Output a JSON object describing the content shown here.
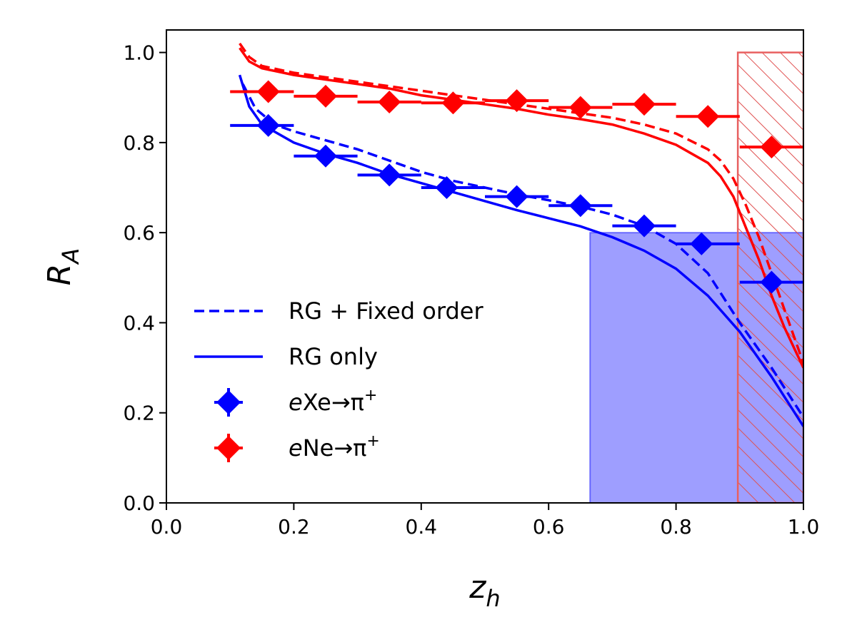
{
  "chart_data": {
    "type": "line",
    "xlabel_main": "z",
    "xlabel_sub": "h",
    "ylabel_main": "R",
    "ylabel_sub": "A",
    "xlim": [
      0.0,
      1.0
    ],
    "ylim": [
      0.0,
      1.05
    ],
    "xticks": [
      "0.0",
      "0.2",
      "0.4",
      "0.6",
      "0.8",
      "1.0"
    ],
    "yticks": [
      "0.0",
      "0.2",
      "0.4",
      "0.6",
      "0.8",
      "1.0"
    ],
    "grid": false,
    "legend_position": "lower-left",
    "shaded_regions": [
      {
        "x": [
          0.665,
          1.0
        ],
        "y": [
          0.0,
          0.6
        ],
        "color": "#0000ff",
        "style": "filled"
      },
      {
        "x": [
          0.897,
          1.0
        ],
        "y": [
          0.0,
          1.0
        ],
        "color": "#ff0000",
        "style": "hatched"
      }
    ],
    "series": [
      {
        "name": "RG + Fixed order",
        "kind": "line",
        "style": "dashed",
        "color": "#0000ff",
        "x": [
          0.12,
          0.14,
          0.17,
          0.2,
          0.25,
          0.3,
          0.35,
          0.4,
          0.45,
          0.5,
          0.55,
          0.6,
          0.65,
          0.7,
          0.75,
          0.8,
          0.85,
          0.9,
          0.95,
          1.0
        ],
        "y": [
          0.93,
          0.875,
          0.84,
          0.825,
          0.805,
          0.785,
          0.76,
          0.735,
          0.715,
          0.7,
          0.685,
          0.672,
          0.658,
          0.64,
          0.615,
          0.575,
          0.51,
          0.4,
          0.3,
          0.19
        ]
      },
      {
        "name": "RG only",
        "kind": "line",
        "style": "solid",
        "color": "#0000ff",
        "x": [
          0.115,
          0.13,
          0.15,
          0.2,
          0.25,
          0.3,
          0.35,
          0.4,
          0.45,
          0.5,
          0.55,
          0.6,
          0.65,
          0.7,
          0.75,
          0.8,
          0.85,
          0.9,
          0.95,
          1.0
        ],
        "y": [
          0.95,
          0.88,
          0.84,
          0.8,
          0.775,
          0.755,
          0.73,
          0.71,
          0.69,
          0.67,
          0.65,
          0.632,
          0.614,
          0.59,
          0.56,
          0.52,
          0.46,
          0.38,
          0.28,
          0.17
        ]
      },
      {
        "name": "",
        "kind": "line",
        "style": "dashed",
        "color": "#ff0000",
        "x": [
          0.115,
          0.13,
          0.15,
          0.2,
          0.25,
          0.3,
          0.35,
          0.4,
          0.45,
          0.5,
          0.55,
          0.6,
          0.65,
          0.7,
          0.75,
          0.8,
          0.85,
          0.87,
          0.89,
          0.91,
          0.93,
          0.95,
          0.97,
          1.0
        ],
        "y": [
          1.02,
          0.99,
          0.97,
          0.955,
          0.945,
          0.935,
          0.925,
          0.915,
          0.905,
          0.895,
          0.885,
          0.875,
          0.865,
          0.855,
          0.84,
          0.82,
          0.785,
          0.76,
          0.72,
          0.66,
          0.59,
          0.51,
          0.43,
          0.31
        ]
      },
      {
        "name": "",
        "kind": "line",
        "style": "solid",
        "color": "#ff0000",
        "x": [
          0.115,
          0.13,
          0.15,
          0.2,
          0.25,
          0.3,
          0.35,
          0.4,
          0.45,
          0.5,
          0.55,
          0.6,
          0.65,
          0.7,
          0.75,
          0.8,
          0.85,
          0.87,
          0.89,
          0.91,
          0.93,
          0.95,
          0.97,
          1.0
        ],
        "y": [
          1.01,
          0.98,
          0.965,
          0.95,
          0.94,
          0.93,
          0.92,
          0.905,
          0.895,
          0.885,
          0.875,
          0.862,
          0.852,
          0.84,
          0.82,
          0.795,
          0.755,
          0.725,
          0.68,
          0.61,
          0.54,
          0.46,
          0.39,
          0.3
        ]
      },
      {
        "name": "eXe→π⁺",
        "kind": "markers",
        "marker": "diamond",
        "color": "#0000ff",
        "x": [
          0.16,
          0.25,
          0.35,
          0.44,
          0.55,
          0.65,
          0.75,
          0.84,
          0.95
        ],
        "y": [
          0.838,
          0.77,
          0.728,
          0.7,
          0.68,
          0.66,
          0.615,
          0.575,
          0.49
        ],
        "xerr_low": [
          0.1,
          0.2,
          0.3,
          0.4,
          0.5,
          0.6,
          0.7,
          0.8,
          0.9
        ],
        "xerr_high": [
          0.2,
          0.3,
          0.4,
          0.5,
          0.6,
          0.7,
          0.8,
          0.9,
          1.0
        ]
      },
      {
        "name": "eNe→π⁺",
        "kind": "markers",
        "marker": "diamond",
        "color": "#ff0000",
        "x": [
          0.16,
          0.25,
          0.35,
          0.45,
          0.55,
          0.65,
          0.75,
          0.85,
          0.95
        ],
        "y": [
          0.913,
          0.903,
          0.89,
          0.888,
          0.893,
          0.878,
          0.885,
          0.858,
          0.79
        ],
        "xerr_low": [
          0.1,
          0.2,
          0.3,
          0.4,
          0.5,
          0.6,
          0.7,
          0.8,
          0.9
        ],
        "xerr_high": [
          0.2,
          0.3,
          0.4,
          0.5,
          0.6,
          0.7,
          0.8,
          0.9,
          1.0
        ]
      }
    ],
    "legend": [
      {
        "label": "RG + Fixed order",
        "kind": "dashed",
        "color": "#0000ff"
      },
      {
        "label": "RG only",
        "kind": "solid",
        "color": "#0000ff"
      },
      {
        "label_italic": "e",
        "label_rest": "Xe→π",
        "label_sup": "+",
        "kind": "marker",
        "color": "#0000ff"
      },
      {
        "label_italic": "e",
        "label_rest": "Ne→π",
        "label_sup": "+",
        "kind": "marker",
        "color": "#ff0000"
      }
    ]
  }
}
